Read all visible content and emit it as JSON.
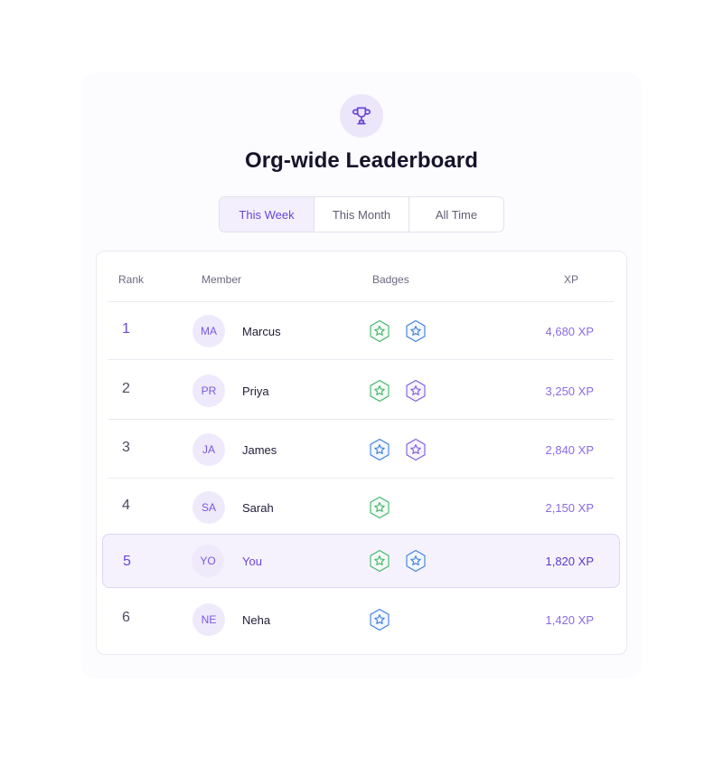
{
  "header": {
    "title": "Org-wide Leaderboard",
    "icon": "trophy-icon",
    "accent": "#6a46d6"
  },
  "tabs": [
    {
      "label": "This Week",
      "active": true
    },
    {
      "label": "This Month",
      "active": false
    },
    {
      "label": "All Time",
      "active": false
    }
  ],
  "table": {
    "columns": {
      "rank": "Rank",
      "member": "Member",
      "badges": "Badges",
      "xp": "XP"
    },
    "rows": [
      {
        "rank": "1",
        "initials": "MA",
        "name": "Marcus",
        "badges": [
          "green-star-badge-icon",
          "blue-star-badge-icon"
        ],
        "xp": "4,680 XP"
      },
      {
        "rank": "2",
        "initials": "PR",
        "name": "Priya",
        "badges": [
          "green-star-badge-icon",
          "purple-star-badge-icon"
        ],
        "xp": "3,250 XP"
      },
      {
        "rank": "3",
        "initials": "JA",
        "name": "James",
        "badges": [
          "blue-star-badge-icon",
          "purple-star-badge-icon"
        ],
        "xp": "2,840 XP"
      },
      {
        "rank": "4",
        "initials": "SA",
        "name": "Sarah",
        "badges": [
          "green-star-badge-icon"
        ],
        "xp": "2,150 XP"
      },
      {
        "rank": "5",
        "initials": "YO",
        "name": "You",
        "badges": [
          "green-star-badge-icon",
          "blue-star-badge-icon"
        ],
        "xp": "1,820 XP",
        "current_user": true
      },
      {
        "rank": "6",
        "initials": "NE",
        "name": "Neha",
        "badges": [
          "blue-star-badge-icon"
        ],
        "xp": "1,420 XP"
      }
    ]
  },
  "badge_colors": {
    "green": "#3fb56a",
    "blue": "#3d7fe0",
    "purple": "#7c5ce0"
  }
}
